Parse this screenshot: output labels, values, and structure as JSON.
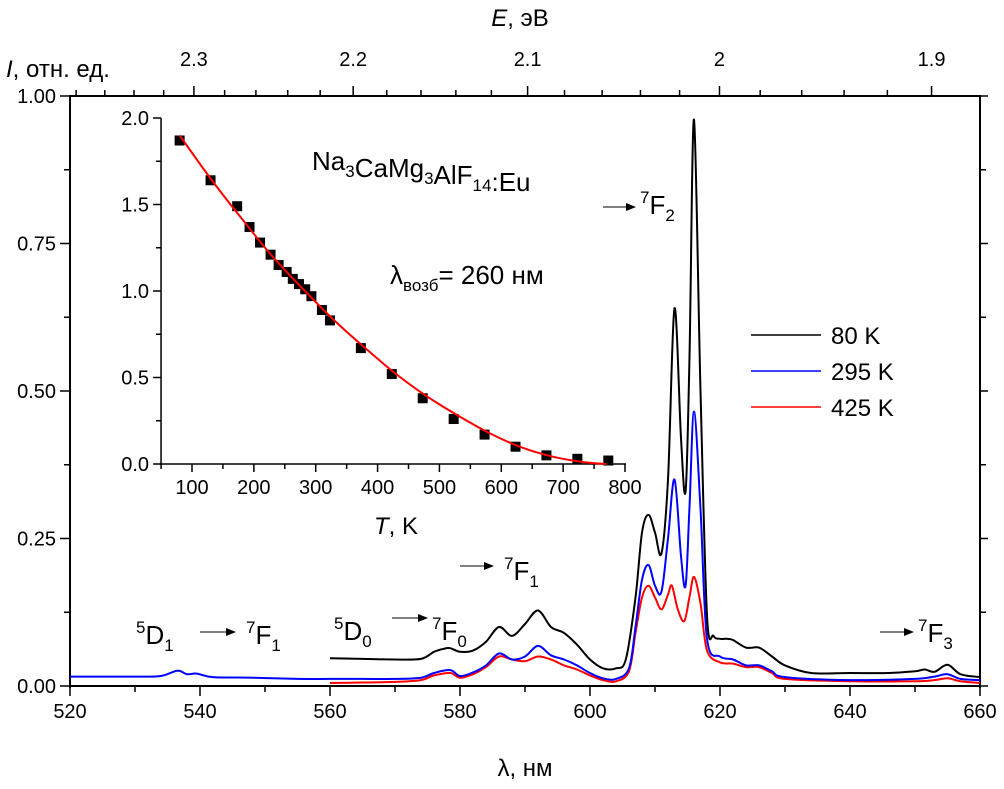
{
  "chart_data": [
    {
      "type": "line",
      "title": "",
      "xlabel": "λ, нм",
      "ylabel": "I, отн. ед.",
      "ylabel_italic_part": "I",
      "ylabel_rest": ", отн. ед.",
      "top_xlabel": "E, эВ",
      "top_xlabel_italic_part": "E",
      "top_xlabel_rest": ", эВ",
      "xlim": [
        520,
        660
      ],
      "ylim": [
        0,
        1.0
      ],
      "x_ticks": [
        520,
        540,
        560,
        580,
        600,
        620,
        640,
        660
      ],
      "x_tick_labels": [
        "520",
        "540",
        "560",
        "580",
        "600",
        "620",
        "640",
        "660"
      ],
      "y_ticks": [
        0,
        0.25,
        0.5,
        0.75,
        1.0
      ],
      "y_tick_labels": [
        "0.00",
        "0.25",
        "0.50",
        "0.75",
        "1.00"
      ],
      "top_ticks_eV": [
        2.3,
        2.2,
        2.1,
        2.0,
        1.9
      ],
      "top_tick_labels": [
        "2.3",
        "2.2",
        "2.1",
        "2",
        "1.9"
      ],
      "grid": false,
      "legend_position": "center-right",
      "series": [
        {
          "name": "80 K",
          "color": "#000000",
          "x": [
            560,
            565,
            570,
            574,
            576,
            577.5,
            578.5,
            580,
            582,
            584,
            586,
            588,
            590,
            592,
            594,
            596,
            598,
            600,
            602,
            604,
            605.5,
            607,
            608,
            609,
            610,
            611,
            612,
            613,
            614,
            614.7,
            615.3,
            616,
            617,
            618,
            619,
            620,
            621,
            622,
            624,
            626,
            628,
            630,
            634,
            640,
            646,
            650,
            651.5,
            653,
            655,
            657,
            660
          ],
          "y": [
            0.047,
            0.046,
            0.045,
            0.046,
            0.058,
            0.063,
            0.064,
            0.058,
            0.06,
            0.075,
            0.1,
            0.085,
            0.105,
            0.128,
            0.1,
            0.09,
            0.07,
            0.045,
            0.03,
            0.03,
            0.045,
            0.15,
            0.26,
            0.29,
            0.26,
            0.225,
            0.35,
            0.64,
            0.42,
            0.33,
            0.55,
            0.96,
            0.5,
            0.12,
            0.085,
            0.08,
            0.08,
            0.078,
            0.065,
            0.065,
            0.05,
            0.035,
            0.022,
            0.022,
            0.022,
            0.025,
            0.028,
            0.024,
            0.036,
            0.02,
            0.015
          ]
        },
        {
          "name": "295 K",
          "color": "#0000ff",
          "x": [
            520,
            530,
            534,
            536.5,
            538,
            539.5,
            542,
            548,
            555,
            560,
            565,
            570,
            574,
            576,
            578.5,
            580,
            582,
            584,
            586,
            588,
            590,
            592,
            594,
            596,
            598,
            600,
            602,
            604,
            606,
            607,
            608,
            609,
            610,
            611,
            612,
            613,
            614,
            614.7,
            615.3,
            616,
            617,
            618,
            620,
            622,
            624,
            626,
            628,
            630,
            640,
            650,
            653,
            655,
            657,
            660
          ],
          "y": [
            0.016,
            0.016,
            0.017,
            0.026,
            0.02,
            0.021,
            0.015,
            0.014,
            0.012,
            0.012,
            0.012,
            0.012,
            0.014,
            0.022,
            0.027,
            0.017,
            0.023,
            0.035,
            0.055,
            0.045,
            0.05,
            0.068,
            0.052,
            0.045,
            0.035,
            0.022,
            0.013,
            0.012,
            0.03,
            0.1,
            0.18,
            0.205,
            0.17,
            0.16,
            0.25,
            0.35,
            0.22,
            0.17,
            0.3,
            0.465,
            0.3,
            0.08,
            0.05,
            0.045,
            0.035,
            0.035,
            0.025,
            0.015,
            0.01,
            0.012,
            0.016,
            0.02,
            0.012,
            0.01
          ]
        },
        {
          "name": "425 K",
          "color": "#ff0000",
          "x": [
            560,
            565,
            570,
            574,
            576,
            578.5,
            580,
            582,
            584,
            586,
            588,
            590,
            592,
            594,
            596,
            598,
            600,
            602,
            604,
            606,
            607,
            608,
            609,
            610,
            611,
            612,
            612.6,
            613.5,
            614.5,
            615.3,
            616,
            617,
            618,
            620,
            622,
            624,
            626,
            628,
            630,
            640,
            650,
            653,
            655,
            657,
            660
          ],
          "y": [
            0.005,
            0.006,
            0.007,
            0.01,
            0.018,
            0.022,
            0.014,
            0.02,
            0.032,
            0.05,
            0.045,
            0.042,
            0.05,
            0.045,
            0.035,
            0.028,
            0.018,
            0.01,
            0.008,
            0.025,
            0.09,
            0.15,
            0.17,
            0.15,
            0.13,
            0.155,
            0.17,
            0.13,
            0.11,
            0.15,
            0.185,
            0.14,
            0.06,
            0.04,
            0.038,
            0.032,
            0.032,
            0.022,
            0.012,
            0.008,
            0.008,
            0.01,
            0.013,
            0.008,
            0.005
          ]
        }
      ],
      "annotations": [
        {
          "id": "d1f1",
          "pre_sup": "5",
          "pre": "D",
          "pre_sub": "1",
          "post_sup": "7",
          "post": "F",
          "post_sub": "1"
        },
        {
          "id": "d0f0",
          "pre_sup": "5",
          "pre": "D",
          "pre_sub": "0",
          "post_sup": "7",
          "post": "F",
          "post_sub": "0"
        },
        {
          "id": "f1",
          "post_sup": "7",
          "post": "F",
          "post_sub": "1"
        },
        {
          "id": "f2",
          "post_sup": "7",
          "post": "F",
          "post_sub": "2"
        },
        {
          "id": "f3",
          "post_sup": "7",
          "post": "F",
          "post_sub": "3"
        }
      ]
    },
    {
      "type": "scatter",
      "title": "Na3CaMg3AlF14:Eu",
      "xlabel": "T, K",
      "xlabel_italic_part": "T",
      "xlabel_rest": ", K",
      "ylabel": "",
      "xlim": [
        50,
        800
      ],
      "ylim": [
        0,
        2.0
      ],
      "x_ticks": [
        100,
        200,
        300,
        400,
        500,
        600,
        700,
        800
      ],
      "x_tick_labels": [
        "100",
        "200",
        "300",
        "400",
        "500",
        "600",
        "700",
        "800"
      ],
      "y_ticks": [
        0,
        0.5,
        1.0,
        1.5,
        2.0
      ],
      "y_tick_labels": [
        "0.0",
        "0.5",
        "1.0",
        "1.5",
        "2.0"
      ],
      "grid": false,
      "points": {
        "name": "data",
        "color": "#000000",
        "x": [
          80,
          130,
          173,
          193,
          210,
          227,
          240,
          253,
          263,
          273,
          283,
          293,
          310,
          323,
          373,
          423,
          473,
          523,
          573,
          623,
          673,
          723,
          773
        ],
        "y": [
          1.87,
          1.64,
          1.49,
          1.37,
          1.28,
          1.21,
          1.15,
          1.11,
          1.07,
          1.04,
          1.01,
          0.97,
          0.89,
          0.83,
          0.67,
          0.52,
          0.38,
          0.26,
          0.17,
          0.1,
          0.05,
          0.03,
          0.02
        ]
      },
      "fit": {
        "name": "fit",
        "color": "#ff0000",
        "x": [
          80,
          130,
          180,
          230,
          280,
          330,
          380,
          430,
          480,
          530,
          580,
          630,
          680,
          730,
          770
        ],
        "y": [
          1.9,
          1.65,
          1.42,
          1.2,
          1.01,
          0.83,
          0.67,
          0.52,
          0.39,
          0.28,
          0.18,
          0.1,
          0.045,
          0.012,
          0.0
        ]
      },
      "formula": {
        "parts": [
          [
            "Na",
            ""
          ],
          [
            "3",
            "sub"
          ],
          [
            "CaMg",
            ""
          ],
          [
            "3",
            "sub"
          ],
          [
            "AlF",
            ""
          ],
          [
            "14",
            "sub"
          ],
          [
            ":Eu",
            ""
          ]
        ]
      },
      "excitation": {
        "symbol": "λ",
        "sub": "возб",
        "rest": "= 260 нм"
      }
    }
  ]
}
